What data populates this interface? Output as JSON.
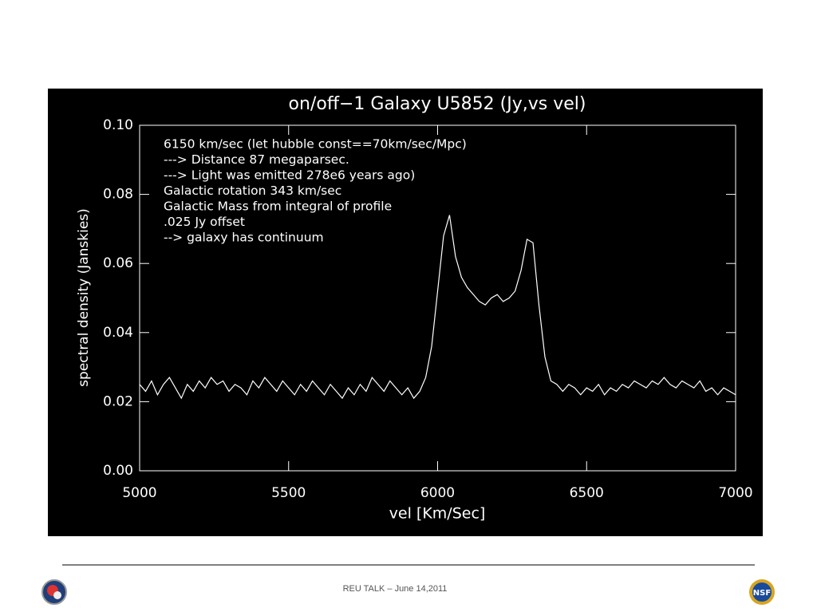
{
  "chart_data": {
    "type": "line",
    "title": "on/off−1 Galaxy U5852 (Jy,vs vel)",
    "x_label": "vel [Km/Sec]",
    "y_label": "spectral density (Janskies)",
    "annotations": [
      "6150 km/sec (let hubble const==70km/sec/Mpc)",
      "---> Distance 87 megaparsec.",
      "---> Light was emitted 278e6 years ago)",
      "Galactic rotation 343 km/sec",
      "Galactic Mass from integral of profile",
      ".025 Jy offset",
      "--> galaxy has continuum"
    ],
    "x": [
      5000,
      5020,
      5040,
      5060,
      5080,
      5100,
      5120,
      5140,
      5160,
      5180,
      5200,
      5220,
      5240,
      5260,
      5280,
      5300,
      5320,
      5340,
      5360,
      5380,
      5400,
      5420,
      5440,
      5460,
      5480,
      5500,
      5520,
      5540,
      5560,
      5580,
      5600,
      5620,
      5640,
      5660,
      5680,
      5700,
      5720,
      5740,
      5760,
      5780,
      5800,
      5820,
      5840,
      5860,
      5880,
      5900,
      5920,
      5940,
      5960,
      5980,
      6000,
      6020,
      6040,
      6060,
      6080,
      6100,
      6120,
      6140,
      6160,
      6180,
      6200,
      6220,
      6240,
      6260,
      6280,
      6300,
      6320,
      6340,
      6360,
      6380,
      6400,
      6420,
      6440,
      6460,
      6480,
      6500,
      6520,
      6540,
      6560,
      6580,
      6600,
      6620,
      6640,
      6660,
      6680,
      6700,
      6720,
      6740,
      6760,
      6780,
      6800,
      6820,
      6840,
      6860,
      6880,
      6900,
      6920,
      6940,
      6960,
      6980,
      7000
    ],
    "values": [
      0.025,
      0.023,
      0.026,
      0.022,
      0.025,
      0.027,
      0.024,
      0.021,
      0.025,
      0.023,
      0.026,
      0.024,
      0.027,
      0.025,
      0.026,
      0.023,
      0.025,
      0.024,
      0.022,
      0.026,
      0.024,
      0.027,
      0.025,
      0.023,
      0.026,
      0.024,
      0.022,
      0.025,
      0.023,
      0.026,
      0.024,
      0.022,
      0.025,
      0.023,
      0.021,
      0.024,
      0.022,
      0.025,
      0.023,
      0.027,
      0.025,
      0.023,
      0.026,
      0.024,
      0.022,
      0.024,
      0.021,
      0.023,
      0.027,
      0.036,
      0.052,
      0.068,
      0.074,
      0.062,
      0.056,
      0.053,
      0.051,
      0.049,
      0.048,
      0.05,
      0.051,
      0.049,
      0.05,
      0.052,
      0.058,
      0.067,
      0.066,
      0.048,
      0.033,
      0.026,
      0.025,
      0.023,
      0.025,
      0.024,
      0.022,
      0.024,
      0.023,
      0.025,
      0.022,
      0.024,
      0.023,
      0.025,
      0.024,
      0.026,
      0.025,
      0.024,
      0.026,
      0.025,
      0.027,
      0.025,
      0.024,
      0.026,
      0.025,
      0.024,
      0.026,
      0.023,
      0.024,
      0.022,
      0.024,
      0.023,
      0.022
    ],
    "color": "#ffffff",
    "xlim": [
      5000,
      7000
    ],
    "ylim": [
      0,
      0.1
    ],
    "xticks": [
      5000,
      5500,
      6000,
      6500,
      7000
    ],
    "yticks": [
      {
        "value": 0,
        "label": "0.00"
      },
      0.02,
      0.04,
      0.06,
      0.08,
      {
        "value": 0.1,
        "label": "0.10"
      }
    ]
  },
  "footer": {
    "text": "REU TALK – June 14,2011"
  }
}
